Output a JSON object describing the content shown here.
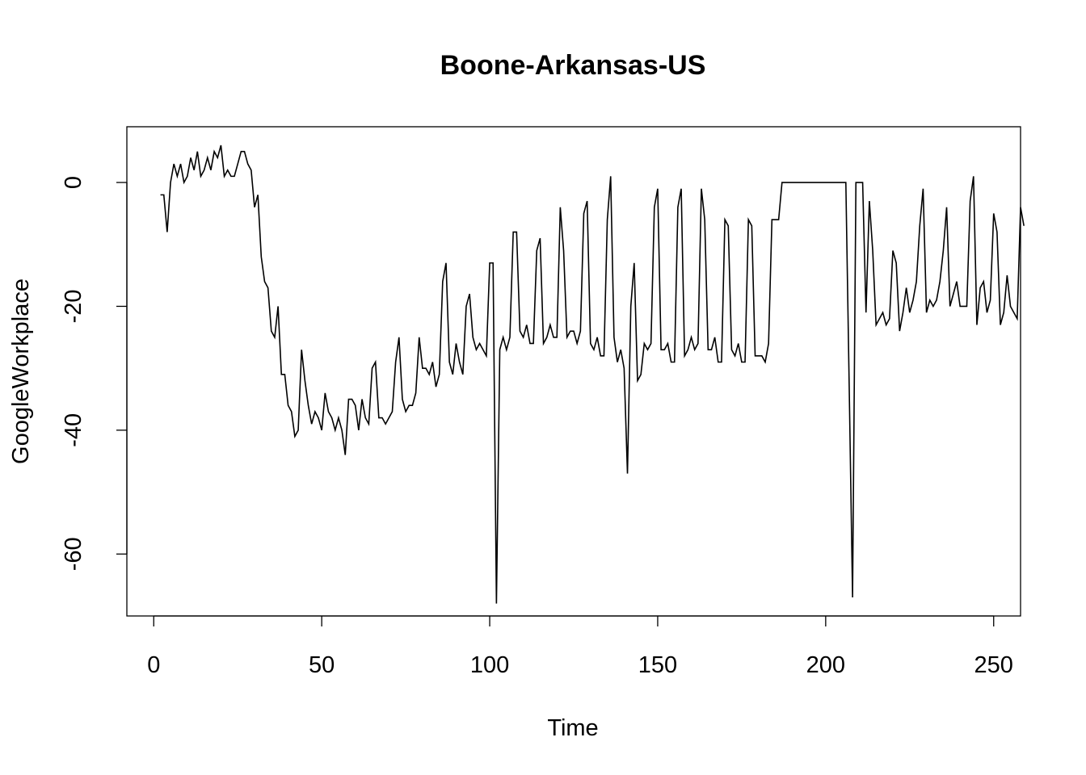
{
  "chart_data": {
    "type": "line",
    "title": "Boone-Arkansas-US",
    "xlabel": "Time",
    "ylabel": "GoogleWorkplace",
    "xlim": [
      -8,
      258
    ],
    "ylim": [
      -70,
      9
    ],
    "x_ticks": [
      0,
      50,
      100,
      150,
      200,
      250
    ],
    "x_tick_labels": [
      "0",
      "50",
      "100",
      "150",
      "200",
      "250"
    ],
    "y_ticks": [
      0,
      -20,
      -40,
      -60
    ],
    "y_tick_labels": [
      "0",
      "-20",
      "-40",
      "-60"
    ],
    "grid": false,
    "legend": "none",
    "color": "#000000",
    "series": [
      {
        "x_start": 2,
        "values": [
          -2,
          -2,
          -8,
          0,
          3,
          1,
          3,
          0,
          1,
          4,
          2,
          5,
          1,
          2,
          4,
          2,
          5,
          4,
          6,
          1,
          2,
          1,
          1,
          3,
          5,
          5,
          3,
          2,
          -4,
          -2,
          -12,
          -16,
          -17,
          -24,
          -25,
          -20,
          -31,
          -31,
          -36,
          -37,
          -41,
          -40,
          -27,
          -32,
          -36,
          -39,
          -37,
          -38,
          -40,
          -34,
          -37,
          -38,
          -40,
          -38,
          -40,
          -44,
          -35,
          -35,
          -36,
          -40,
          -35,
          -38,
          -39,
          -30,
          -29,
          -38,
          -38,
          -39,
          -38,
          -37,
          -29,
          -25,
          -35,
          -37,
          -36,
          -36,
          -34,
          -25,
          -30,
          -30,
          -31,
          -29,
          -33,
          -31,
          -16,
          -13,
          -29,
          -31,
          -26,
          -29,
          -31,
          -20,
          -18,
          -25,
          -27,
          -26,
          -27,
          -28,
          -13,
          -13,
          -68,
          -27,
          -25,
          -27,
          -25,
          -8,
          -8,
          -24,
          -25,
          -23,
          -26,
          -26,
          -11,
          -9,
          -26,
          -25,
          -23,
          -25,
          -25,
          -4,
          -11,
          -25,
          -24,
          -24,
          -26,
          -24,
          -5,
          -3,
          -26,
          -27,
          -25,
          -28,
          -28,
          -6,
          1,
          -25,
          -29,
          -27,
          -30,
          -47,
          -20,
          -13,
          -32,
          -31,
          -26,
          -27,
          -26,
          -4,
          -1,
          -27,
          -27,
          -26,
          -29,
          -29,
          -4,
          -1,
          -28,
          -27,
          -25,
          -27,
          -26,
          -1,
          -6,
          -27,
          -27,
          -25,
          -29,
          -29,
          -6,
          -7,
          -27,
          -28,
          -26,
          -29,
          -29,
          -6,
          -7,
          -28,
          -28,
          -28,
          -29,
          -26,
          -6,
          -6,
          -6,
          0,
          0,
          0,
          0,
          0,
          0,
          0,
          0,
          0,
          0,
          0,
          0,
          0,
          0,
          0,
          0,
          0,
          0,
          0,
          0,
          -33,
          -67,
          0,
          0,
          0,
          -21,
          -3,
          -11,
          -23,
          -22,
          -21,
          -23,
          -22,
          -11,
          -13,
          -24,
          -21,
          -17,
          -21,
          -19,
          -16,
          -7,
          -1,
          -21,
          -19,
          -20,
          -19,
          -16,
          -11,
          -4,
          -20,
          -18,
          -16,
          -20,
          -20,
          -20,
          -3,
          1,
          -23,
          -17,
          -16,
          -21,
          -19,
          -5,
          -8,
          -23,
          -21,
          -15,
          -20,
          -21,
          -22,
          -4,
          -7
        ]
      }
    ]
  }
}
